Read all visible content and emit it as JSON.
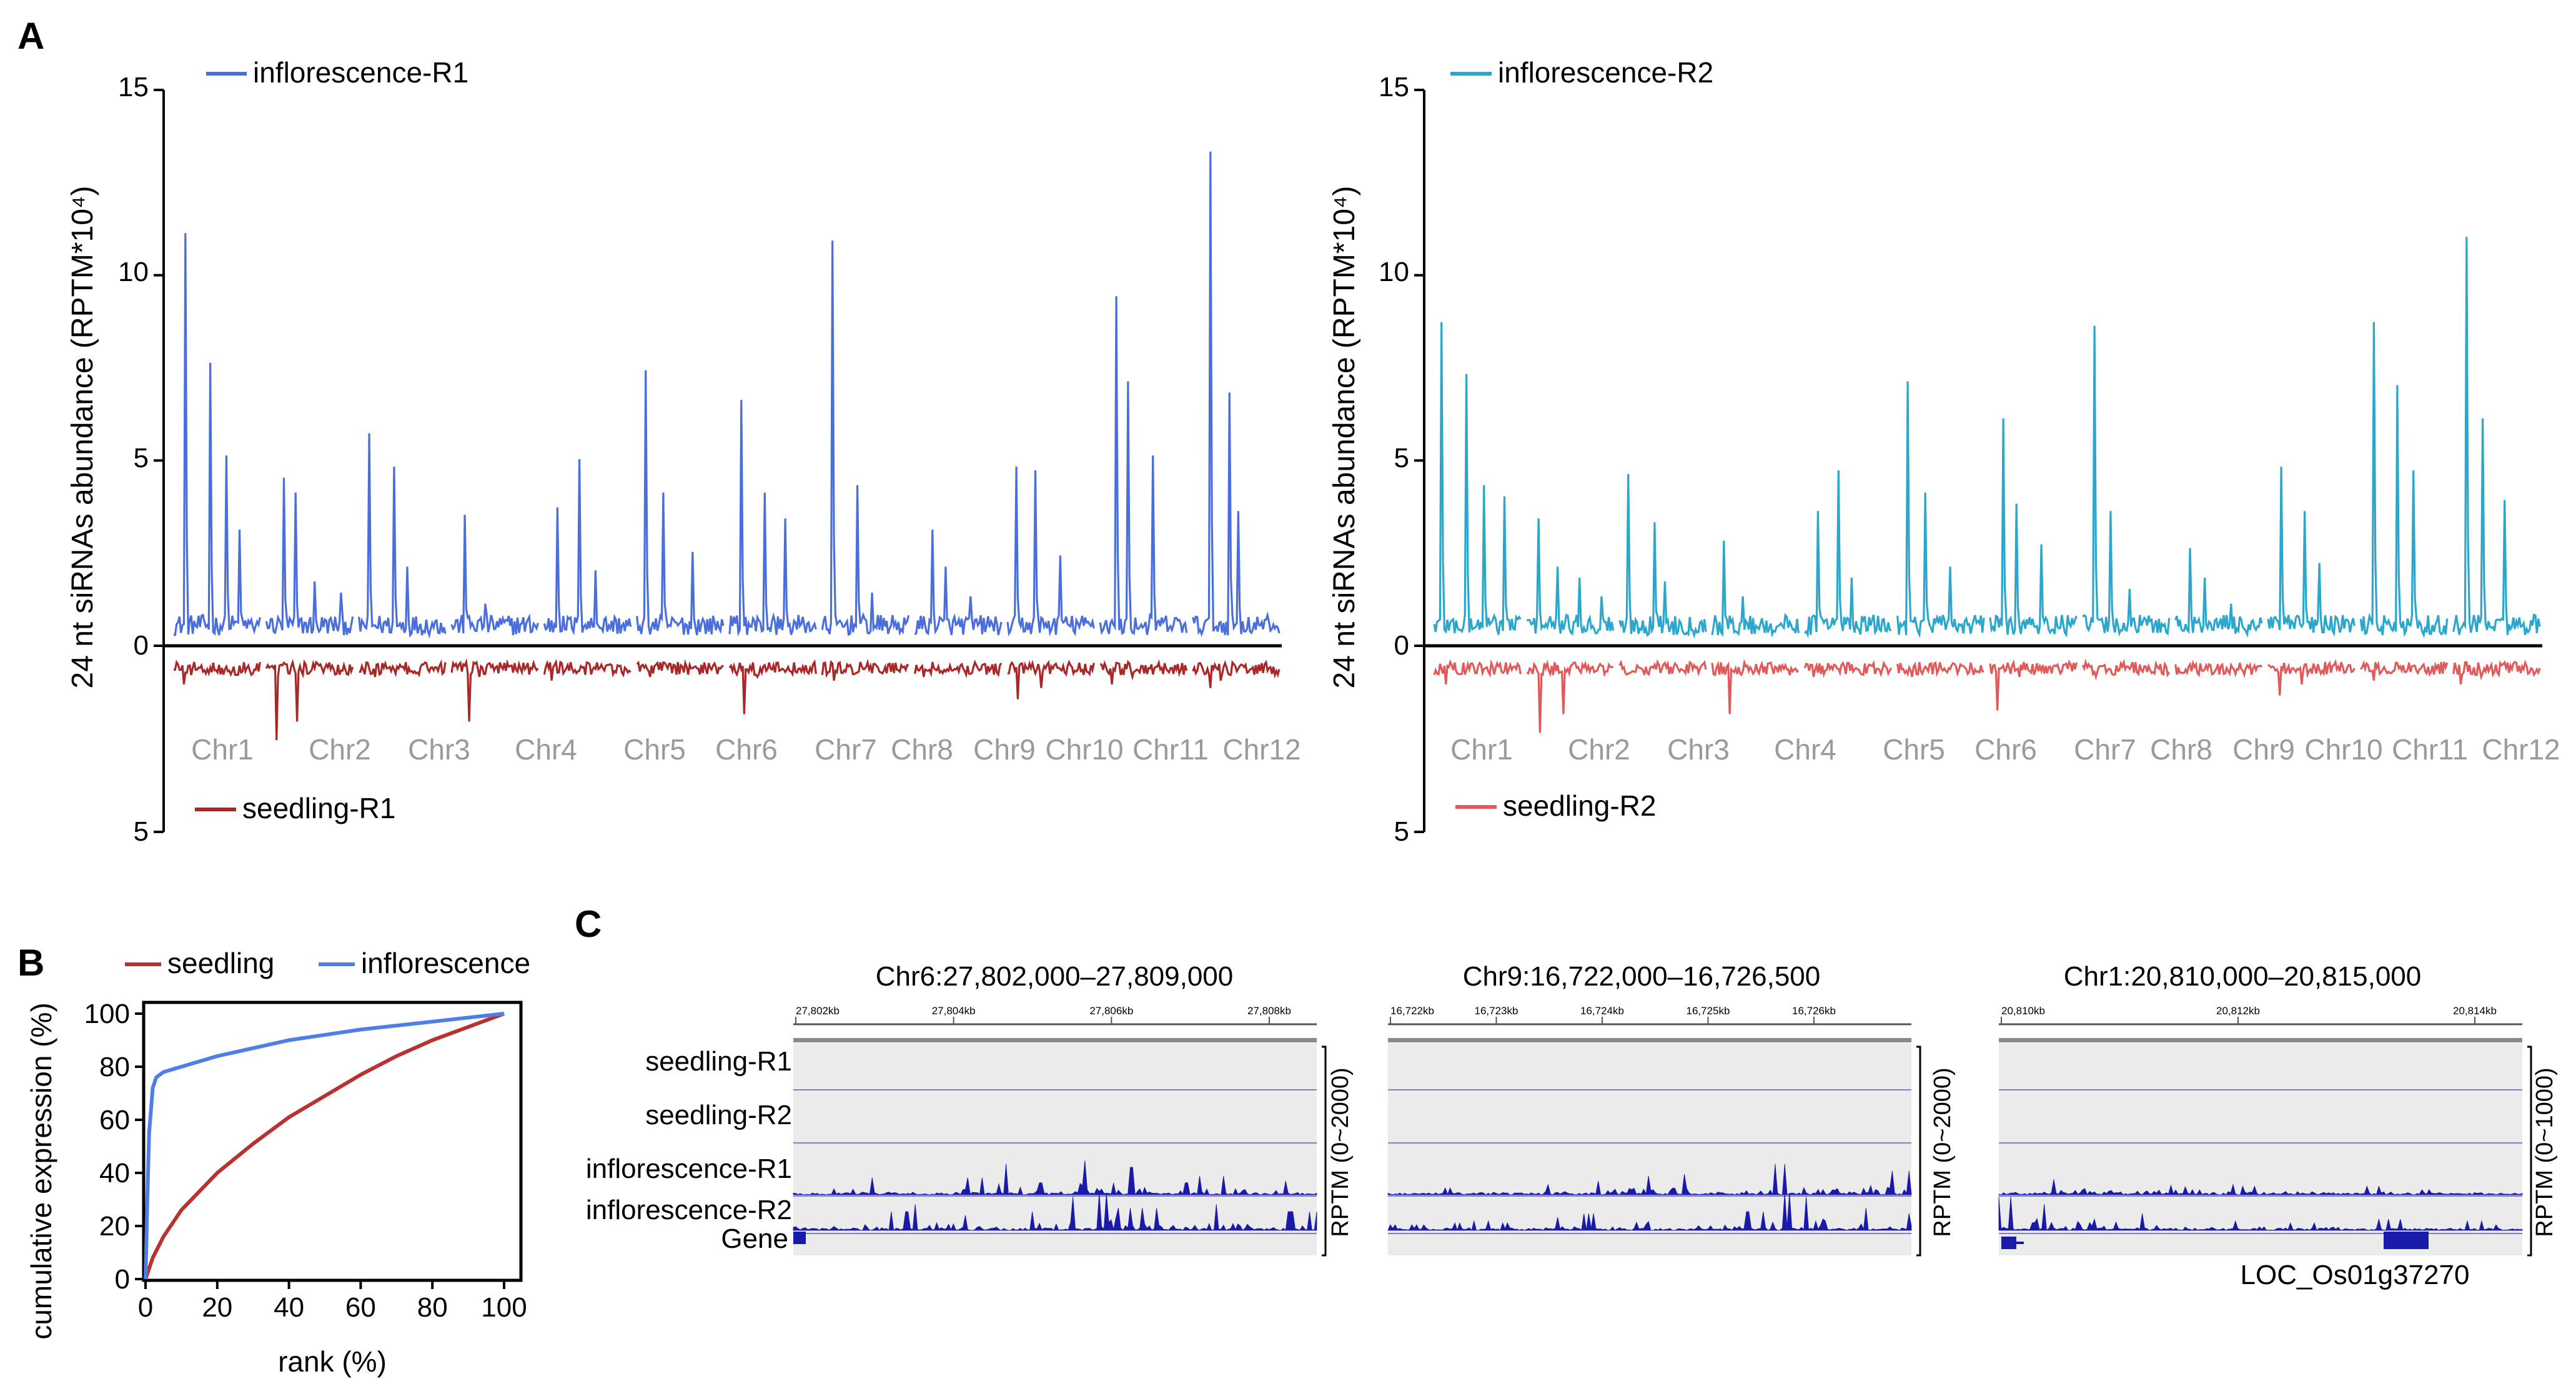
{
  "panel_labels": {
    "a": "A",
    "b": "B",
    "c": "C"
  },
  "colors": {
    "r1_top": "#4a6fdc",
    "r1_bottom": "#a82828",
    "r2_top": "#2ba6cc",
    "r2_bottom": "#e05a5a",
    "seedling_curve": "#b83232",
    "inflorescence_curve": "#4f7fe6",
    "track": "#1a1aa8",
    "track_bg": "#ebebeb",
    "chr_label": "#9a9a9a"
  },
  "chart_data": [
    {
      "id": "A-left",
      "type": "line",
      "title": "",
      "ylabel": "24 nt siRNAs abundance (RPTM*10⁴)",
      "ylim_top": [
        0,
        15
      ],
      "ylim_bottom": [
        0,
        5
      ],
      "yticks_top": [
        "15",
        "10",
        "5",
        "0"
      ],
      "ytick_bottom": "5",
      "categories": [
        "Chr1",
        "Chr2",
        "Chr3",
        "Chr4",
        "Chr5",
        "Chr6",
        "Chr7",
        "Chr8",
        "Chr9",
        "Chr10",
        "Chr11",
        "Chr12"
      ],
      "series": [
        {
          "name": "inflorescence-R1",
          "direction": "up",
          "peaks_per_chromosome": [
            [
              11.0,
              7.5,
              5.0,
              3.0
            ],
            [
              4.4,
              4.0,
              1.6,
              1.3
            ],
            [
              5.6,
              4.7,
              2.0
            ],
            [
              3.4,
              1.0
            ],
            [
              3.6,
              4.9,
              1.9
            ],
            [
              7.3,
              4.0,
              2.4
            ],
            [
              6.5,
              4.0,
              3.3
            ],
            [
              10.8,
              4.2,
              1.3
            ],
            [
              3.0,
              2.0,
              1.2
            ],
            [
              4.7,
              4.6,
              2.3
            ],
            [
              9.3,
              7.0,
              5.0
            ],
            [
              13.2,
              6.7,
              3.5
            ]
          ]
        },
        {
          "name": "seedling-R1",
          "direction": "down",
          "peaks_per_chromosome": [
            [
              0.8,
              0.5
            ],
            [
              2.3,
              1.8
            ],
            [
              0.6,
              0.4
            ],
            [
              1.8,
              0.6
            ],
            [
              0.7,
              0.5
            ],
            [
              0.6,
              0.5
            ],
            [
              1.6,
              0.6
            ],
            [
              0.7,
              0.5
            ],
            [
              0.6,
              0.5
            ],
            [
              1.2,
              0.9
            ],
            [
              0.8,
              0.6
            ],
            [
              0.9,
              0.7
            ]
          ]
        }
      ]
    },
    {
      "id": "A-right",
      "type": "line",
      "title": "",
      "ylabel": "24 nt siRNAs abundance (RPTM*10⁴)",
      "ylim_top": [
        0,
        15
      ],
      "ylim_bottom": [
        0,
        5
      ],
      "yticks_top": [
        "15",
        "10",
        "5",
        "0"
      ],
      "ytick_bottom": "5",
      "categories": [
        "Chr1",
        "Chr2",
        "Chr3",
        "Chr4",
        "Chr5",
        "Chr6",
        "Chr7",
        "Chr8",
        "Chr9",
        "Chr10",
        "Chr11",
        "Chr12"
      ],
      "series": [
        {
          "name": "inflorescence-R2",
          "direction": "up",
          "peaks_per_chromosome": [
            [
              8.6,
              7.2,
              4.2,
              3.9
            ],
            [
              3.3,
              2.0,
              1.7,
              1.2
            ],
            [
              4.5,
              3.2,
              1.6
            ],
            [
              2.7,
              1.2
            ],
            [
              3.5,
              4.6,
              1.7
            ],
            [
              7.0,
              4.0,
              2.0
            ],
            [
              6.0,
              3.7,
              2.6
            ],
            [
              8.5,
              3.5,
              1.4
            ],
            [
              2.5,
              1.7,
              1.0
            ],
            [
              4.7,
              3.5,
              2.1
            ],
            [
              8.6,
              6.9,
              4.6
            ],
            [
              10.9,
              6.0,
              3.8
            ]
          ]
        },
        {
          "name": "seedling-R2",
          "direction": "down",
          "peaks_per_chromosome": [
            [
              0.8,
              0.4
            ],
            [
              2.1,
              1.6
            ],
            [
              0.5,
              0.4
            ],
            [
              1.6,
              0.5
            ],
            [
              0.6,
              0.4
            ],
            [
              0.6,
              0.4
            ],
            [
              1.5,
              0.6
            ],
            [
              0.6,
              0.4
            ],
            [
              0.5,
              0.4
            ],
            [
              1.1,
              0.8
            ],
            [
              0.7,
              0.5
            ],
            [
              0.8,
              0.6
            ]
          ]
        }
      ]
    },
    {
      "id": "B",
      "type": "line",
      "title": "",
      "xlabel": "rank (%)",
      "ylabel": "cumulative expression (%)",
      "xlim": [
        0,
        100
      ],
      "ylim": [
        0,
        100
      ],
      "xticks": [
        0,
        20,
        40,
        60,
        80,
        100
      ],
      "yticks": [
        0,
        20,
        40,
        60,
        80,
        100
      ],
      "series": [
        {
          "name": "seedling",
          "x": [
            0,
            2,
            5,
            10,
            20,
            30,
            40,
            50,
            60,
            70,
            80,
            90,
            100
          ],
          "y": [
            0,
            8,
            16,
            26,
            40,
            51,
            61,
            69,
            77,
            84,
            90,
            95,
            100
          ]
        },
        {
          "name": "inflorescence",
          "x": [
            0,
            0.5,
            1,
            2,
            3,
            5,
            10,
            20,
            40,
            60,
            80,
            100
          ],
          "y": [
            0,
            30,
            55,
            72,
            76,
            78,
            80,
            84,
            90,
            94,
            97,
            100
          ]
        }
      ]
    },
    {
      "id": "C",
      "type": "track",
      "track_labels": [
        "seedling-R1",
        "seedling-R2",
        "inflorescence-R1",
        "inflorescence-R2",
        "Gene"
      ],
      "browsers": [
        {
          "title": "Chr6:27,802,000–27,809,000",
          "ticks": [
            "27,802kb",
            "27,804kb",
            "27,806kb",
            "27,808kb"
          ],
          "scale": "RPTM (0~2000)",
          "gene_name": "",
          "infl_r1_peaks": [
            0.3,
            0.5,
            0.25,
            1.0,
            0.5,
            0.9,
            0.35,
            1.0,
            0.8,
            0.35,
            0.55,
            0.45,
            0.4
          ],
          "infl_r2_peaks": [
            0.3,
            0.45,
            0.5,
            0.7,
            0.4,
            0.5,
            0.9,
            1.0,
            0.6,
            0.45,
            0.7,
            0.55,
            0.5
          ]
        },
        {
          "title": "Chr9:16,722,000–16,726,500",
          "ticks": [
            "16,722kb",
            "16,723kb",
            "16,724kb",
            "16,725kb",
            "16,726kb"
          ],
          "scale": "RPTM (0~2000)",
          "gene_name": "",
          "infl_r1_peaks": [
            0.15,
            0.2,
            0.25,
            0.2,
            0.3,
            0.4,
            0.55,
            0.6,
            0.45,
            0.4,
            0.9,
            1.0,
            0.95,
            0.7
          ],
          "infl_r2_peaks": [
            0.15,
            0.2,
            0.25,
            0.2,
            0.35,
            0.45,
            0.7,
            0.55,
            0.4,
            0.5,
            1.0,
            0.9,
            0.6,
            0.45
          ]
        },
        {
          "title": "Chr1:20,810,000–20,815,000",
          "ticks": [
            "20,810kb",
            "20,812kb",
            "20,814kb"
          ],
          "scale": "RPTM (0~1000)",
          "gene_name": "LOC_Os01g37270",
          "infl_r1_peaks": [
            0.3,
            0.45,
            0.9,
            0.5,
            0.85,
            0.3,
            0.25,
            0.3,
            0.2,
            0.25,
            0.15,
            0.2,
            0.15
          ],
          "infl_r2_peaks": [
            0.9,
            0.7,
            1.0,
            0.45,
            0.3,
            0.25,
            0.3,
            0.2,
            0.25,
            0.3,
            0.2,
            0.25,
            0.15
          ]
        }
      ]
    }
  ]
}
